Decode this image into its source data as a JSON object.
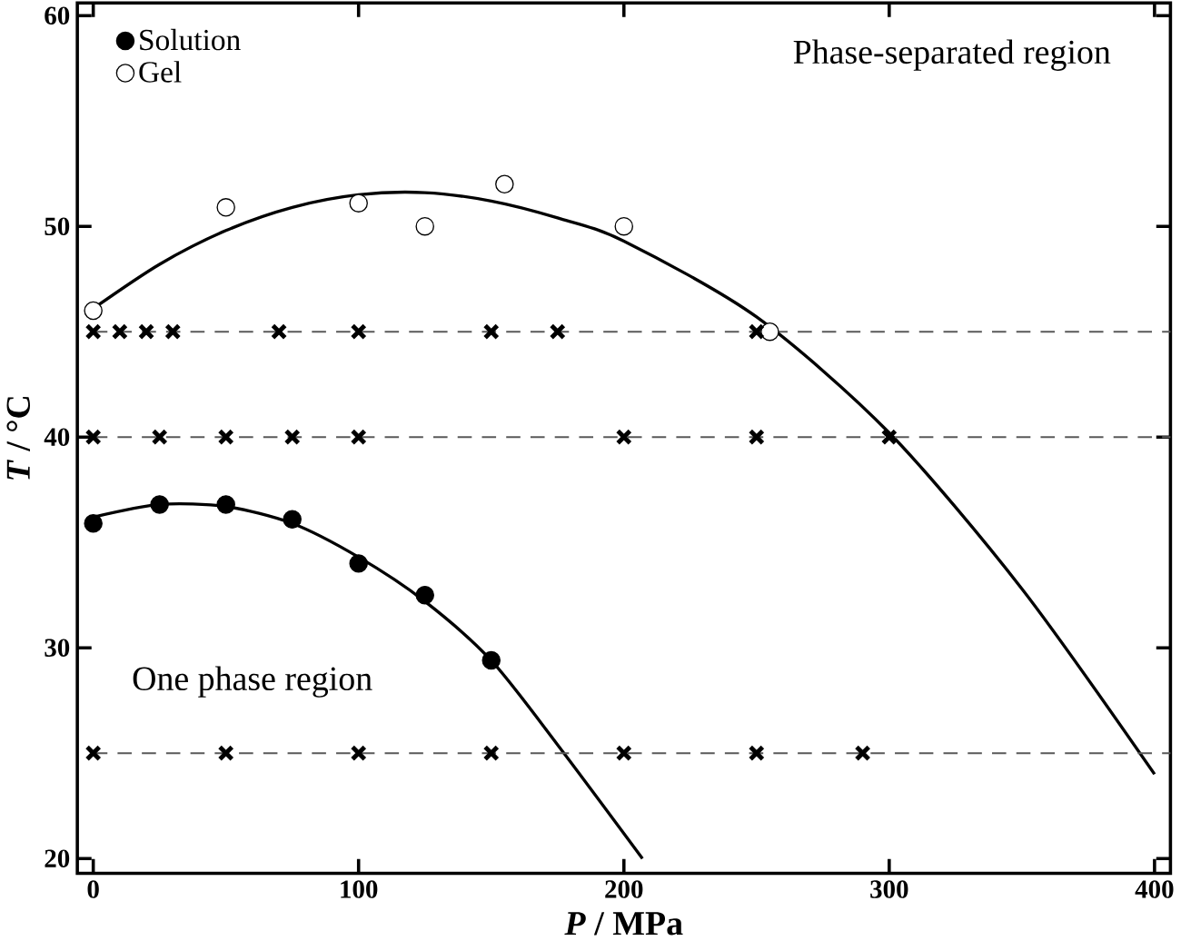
{
  "chart_data": {
    "type": "scatter",
    "xlabel": "*P* / MPa",
    "ylabel": "*T* / °C",
    "xlim": [
      -6,
      406
    ],
    "ylim": [
      19.3,
      60.6
    ],
    "xticks": [
      0,
      100,
      200,
      300,
      400
    ],
    "yticks": [
      20,
      30,
      40,
      50,
      60
    ],
    "legend": "top left",
    "grid": false,
    "series": [
      {
        "name": "Solution",
        "marker": "circle",
        "color": "#000000",
        "x": [
          0,
          25,
          50,
          75,
          100,
          125,
          150
        ],
        "values": [
          35.9,
          36.8,
          36.8,
          36.1,
          34.0,
          32.5,
          29.4
        ]
      },
      {
        "name": "Gel",
        "marker": "circle",
        "color": "#ffffff",
        "x": [
          0,
          50,
          100,
          125,
          155,
          200,
          255
        ],
        "values": [
          46.0,
          50.9,
          51.1,
          50.0,
          52.0,
          50.0,
          45.0
        ]
      },
      {
        "marker": "cross",
        "color": "#000000",
        "x": [
          0,
          10,
          20,
          30,
          70,
          100,
          150,
          175,
          250,
          0,
          25,
          50,
          75,
          100,
          200,
          250,
          300,
          0,
          50,
          100,
          150,
          200,
          250,
          290
        ],
        "values": [
          45,
          45,
          45,
          45,
          45,
          45,
          45,
          45,
          45,
          40,
          40,
          40,
          40,
          40,
          40,
          40,
          40,
          25,
          25,
          25,
          25,
          25,
          25,
          25
        ]
      },
      {
        "type": "line",
        "line_style": "solid",
        "color": "#000000",
        "x": [
          0,
          25,
          50,
          75,
          100,
          125,
          150,
          175,
          207
        ],
        "values": [
          36.2,
          36.8,
          36.7,
          35.9,
          34.3,
          32.2,
          29.4,
          25.4,
          20
        ]
      },
      {
        "type": "line",
        "line_style": "solid",
        "color": "#000000",
        "x": [
          0,
          25,
          50,
          75,
          100,
          125,
          150,
          175,
          200,
          250,
          300,
          350,
          400
        ],
        "values": [
          46.1,
          48.2,
          49.8,
          50.9,
          51.5,
          51.6,
          51.2,
          50.4,
          49.3,
          45.7,
          40.2,
          32.8,
          24
        ]
      }
    ],
    "ref_lines": [
      {
        "axis": "y",
        "value": 45,
        "line_style": "dashed"
      },
      {
        "axis": "y",
        "value": 40,
        "line_style": "dashed"
      },
      {
        "axis": "y",
        "value": 25,
        "line_style": "dashed"
      }
    ],
    "annotations": [
      "Phase-separated region",
      "One phase region"
    ]
  }
}
